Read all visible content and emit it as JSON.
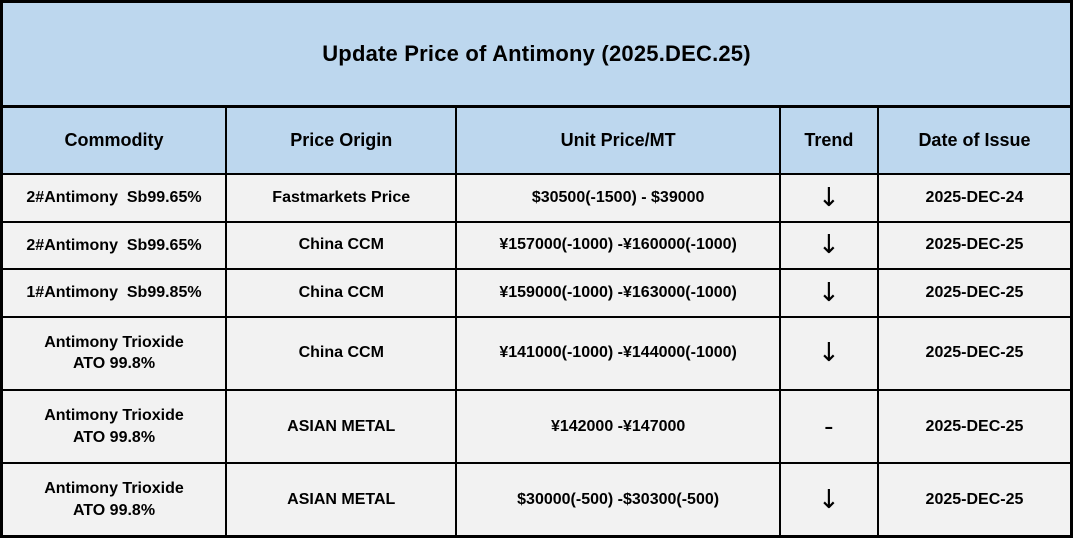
{
  "title": "Update Price of Antimony (2025.DEC.25)",
  "colors": {
    "header_bg": "#BDD7EE",
    "row_bg": "#F2F2F2",
    "border": "#000000",
    "text": "#000000"
  },
  "table": {
    "columns": [
      "Commodity",
      "Price Origin",
      "Unit Price/MT",
      "Trend",
      "Date of Issue"
    ],
    "rows": [
      {
        "commodity": "2#Antimony  Sb99.65%",
        "origin": "Fastmarkets Price",
        "price": "$30500(-1500) - $39000",
        "trend": "↓",
        "trend_meaning": "down",
        "date": "2025-DEC-24"
      },
      {
        "commodity": "2#Antimony  Sb99.65%",
        "origin": "China CCM",
        "price": "¥157000(-1000) -¥160000(-1000)",
        "trend": "↓",
        "trend_meaning": "down",
        "date": "2025-DEC-25"
      },
      {
        "commodity": "1#Antimony  Sb99.85%",
        "origin": "China CCM",
        "price": "¥159000(-1000) -¥163000(-1000)",
        "trend": "↓",
        "trend_meaning": "down",
        "date": "2025-DEC-25"
      },
      {
        "commodity": "Antimony Trioxide\nATO 99.8%",
        "origin": "China CCM",
        "price": "¥141000(-1000) -¥144000(-1000)",
        "trend": "↓",
        "trend_meaning": "down",
        "date": "2025-DEC-25"
      },
      {
        "commodity": "Antimony Trioxide\nATO 99.8%",
        "origin": "ASIAN METAL",
        "price": "¥142000 -¥147000",
        "trend": "-",
        "trend_meaning": "unchanged",
        "date": "2025-DEC-25"
      },
      {
        "commodity": "Antimony Trioxide\nATO 99.8%",
        "origin": "ASIAN METAL",
        "price": "$30000(-500) -$30300(-500)",
        "trend": "↓",
        "trend_meaning": "down",
        "date": "2025-DEC-25"
      }
    ]
  }
}
